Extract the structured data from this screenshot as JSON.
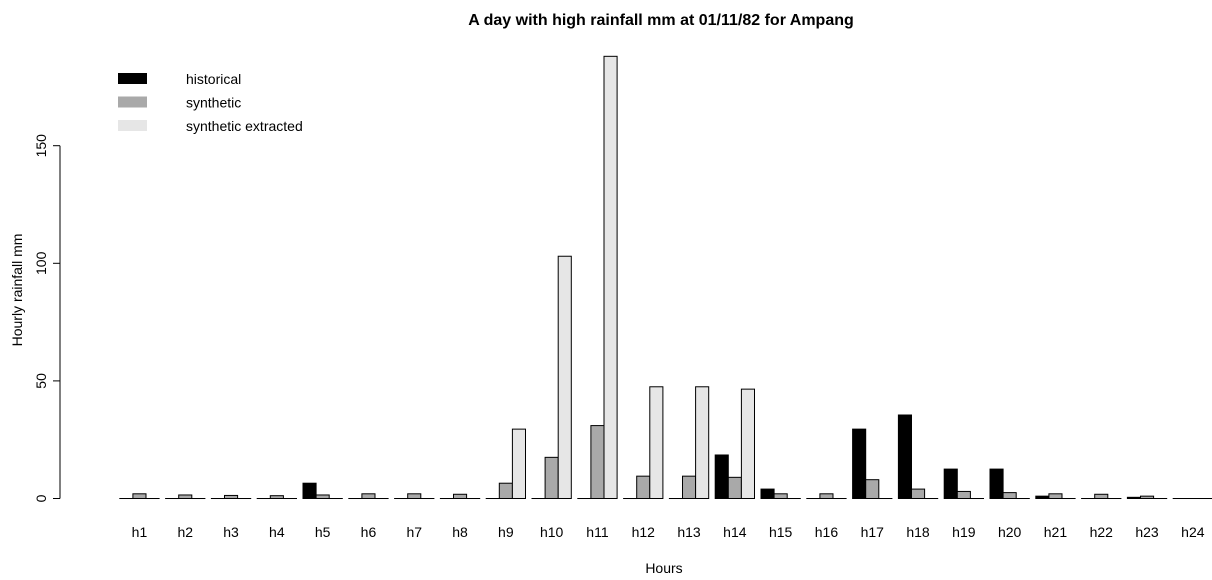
{
  "chart_data": {
    "type": "bar",
    "title": "A day with high rainfall mm at 01/11/82 for Ampang",
    "xlabel": "Hours",
    "ylabel": "Hourly rainfall mm",
    "ylim": [
      0,
      190
    ],
    "yticks": [
      0,
      50,
      100,
      150
    ],
    "legend_position": "top-left",
    "grid": false,
    "categories": [
      "h1",
      "h2",
      "h3",
      "h4",
      "h5",
      "h6",
      "h7",
      "h8",
      "h9",
      "h10",
      "h11",
      "h12",
      "h13",
      "h14",
      "h15",
      "h16",
      "h17",
      "h18",
      "h19",
      "h20",
      "h21",
      "h22",
      "h23",
      "h24"
    ],
    "series": [
      {
        "name": "historical",
        "color": "#000000",
        "values": [
          0,
          0,
          0,
          0,
          6.5,
          0,
          0,
          0,
          0,
          0,
          0,
          0,
          0,
          18.5,
          4,
          0,
          29.5,
          35.5,
          12.5,
          12.5,
          1,
          0,
          0.5,
          0
        ]
      },
      {
        "name": "synthetic",
        "color": "#a9a9a9",
        "values": [
          2,
          1.5,
          1.3,
          1.2,
          1.5,
          2,
          2,
          1.8,
          6.5,
          17.5,
          31,
          9.5,
          9.5,
          9,
          2,
          2,
          8,
          4,
          3,
          2.5,
          2,
          1.8,
          1,
          0
        ]
      },
      {
        "name": "synthetic extracted",
        "color": "#e6e6e6",
        "values": [
          0,
          0,
          0,
          0,
          0,
          0,
          0,
          0,
          29.5,
          103,
          188,
          47.5,
          47.5,
          46.5,
          0,
          0,
          0,
          0,
          0,
          0,
          0,
          0,
          0,
          0
        ]
      }
    ]
  }
}
